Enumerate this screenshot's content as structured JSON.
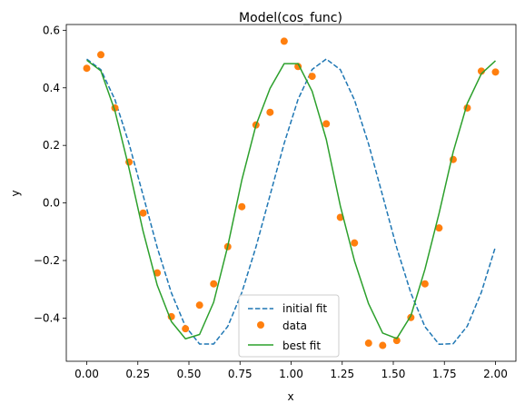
{
  "chart_data": {
    "type": "line",
    "title": "Model(cos_func)",
    "xlabel": "x",
    "ylabel": "y",
    "xlim": [
      -0.1,
      2.1
    ],
    "ylim": [
      -0.55,
      0.62
    ],
    "xticks": [
      0.0,
      0.25,
      0.5,
      0.75,
      1.0,
      1.25,
      1.5,
      1.75,
      2.0
    ],
    "xtick_labels": [
      "0.00",
      "0.25",
      "0.50",
      "0.75",
      "1.00",
      "1.25",
      "1.50",
      "1.75",
      "2.00"
    ],
    "yticks": [
      -0.4,
      -0.2,
      0.0,
      0.2,
      0.4,
      0.6
    ],
    "ytick_labels": [
      "−0.4",
      "−0.2",
      "0.0",
      "0.2",
      "0.4",
      "0.6"
    ],
    "grid": false,
    "legend_position": "lower-center",
    "series": [
      {
        "name": "initial fit",
        "style": "dashed-line",
        "color": "#1f77b4",
        "x": [
          0.0,
          0.069,
          0.138,
          0.207,
          0.276,
          0.345,
          0.414,
          0.483,
          0.552,
          0.621,
          0.69,
          0.759,
          0.828,
          0.897,
          0.966,
          1.034,
          1.103,
          1.172,
          1.241,
          1.31,
          1.379,
          1.448,
          1.517,
          1.586,
          1.655,
          1.724,
          1.793,
          1.862,
          1.931,
          2.0
        ],
        "y": [
          0.5,
          0.463,
          0.359,
          0.206,
          0.026,
          -0.155,
          -0.312,
          -0.429,
          -0.49,
          -0.49,
          -0.429,
          -0.311,
          -0.153,
          0.027,
          0.207,
          0.36,
          0.464,
          0.5,
          0.463,
          0.358,
          0.205,
          0.025,
          -0.156,
          -0.313,
          -0.43,
          -0.491,
          -0.489,
          -0.428,
          -0.31,
          -0.152
        ]
      },
      {
        "name": "data",
        "style": "markers",
        "color": "#ff7f0e",
        "x": [
          0.0,
          0.069,
          0.138,
          0.207,
          0.276,
          0.345,
          0.414,
          0.483,
          0.552,
          0.621,
          0.69,
          0.759,
          0.828,
          0.897,
          0.966,
          1.034,
          1.103,
          1.172,
          1.241,
          1.31,
          1.379,
          1.448,
          1.517,
          1.586,
          1.655,
          1.724,
          1.793,
          1.862,
          1.931,
          2.0
        ],
        "y": [
          0.468,
          0.515,
          0.33,
          0.142,
          -0.035,
          -0.243,
          -0.395,
          -0.437,
          -0.355,
          -0.281,
          -0.152,
          -0.013,
          0.271,
          0.315,
          0.562,
          0.474,
          0.44,
          0.275,
          -0.05,
          -0.139,
          -0.487,
          -0.495,
          -0.478,
          -0.398,
          -0.281,
          -0.087,
          0.151,
          0.33,
          0.458,
          0.455
        ]
      },
      {
        "name": "best fit",
        "style": "solid-line",
        "color": "#2ca02c",
        "x": [
          0.0,
          0.069,
          0.138,
          0.207,
          0.276,
          0.345,
          0.414,
          0.483,
          0.552,
          0.621,
          0.69,
          0.759,
          0.828,
          0.897,
          0.966,
          1.034,
          1.103,
          1.172,
          1.241,
          1.31,
          1.379,
          1.448,
          1.517,
          1.586,
          1.655,
          1.724,
          1.793,
          1.862,
          1.931,
          2.0
        ],
        "y": [
          0.496,
          0.459,
          0.32,
          0.12,
          -0.099,
          -0.286,
          -0.412,
          -0.472,
          -0.457,
          -0.345,
          -0.15,
          0.08,
          0.27,
          0.398,
          0.484,
          0.484,
          0.388,
          0.221,
          -0.011,
          -0.201,
          -0.35,
          -0.452,
          -0.471,
          -0.392,
          -0.23,
          -0.036,
          0.177,
          0.346,
          0.449,
          0.494
        ]
      }
    ]
  }
}
